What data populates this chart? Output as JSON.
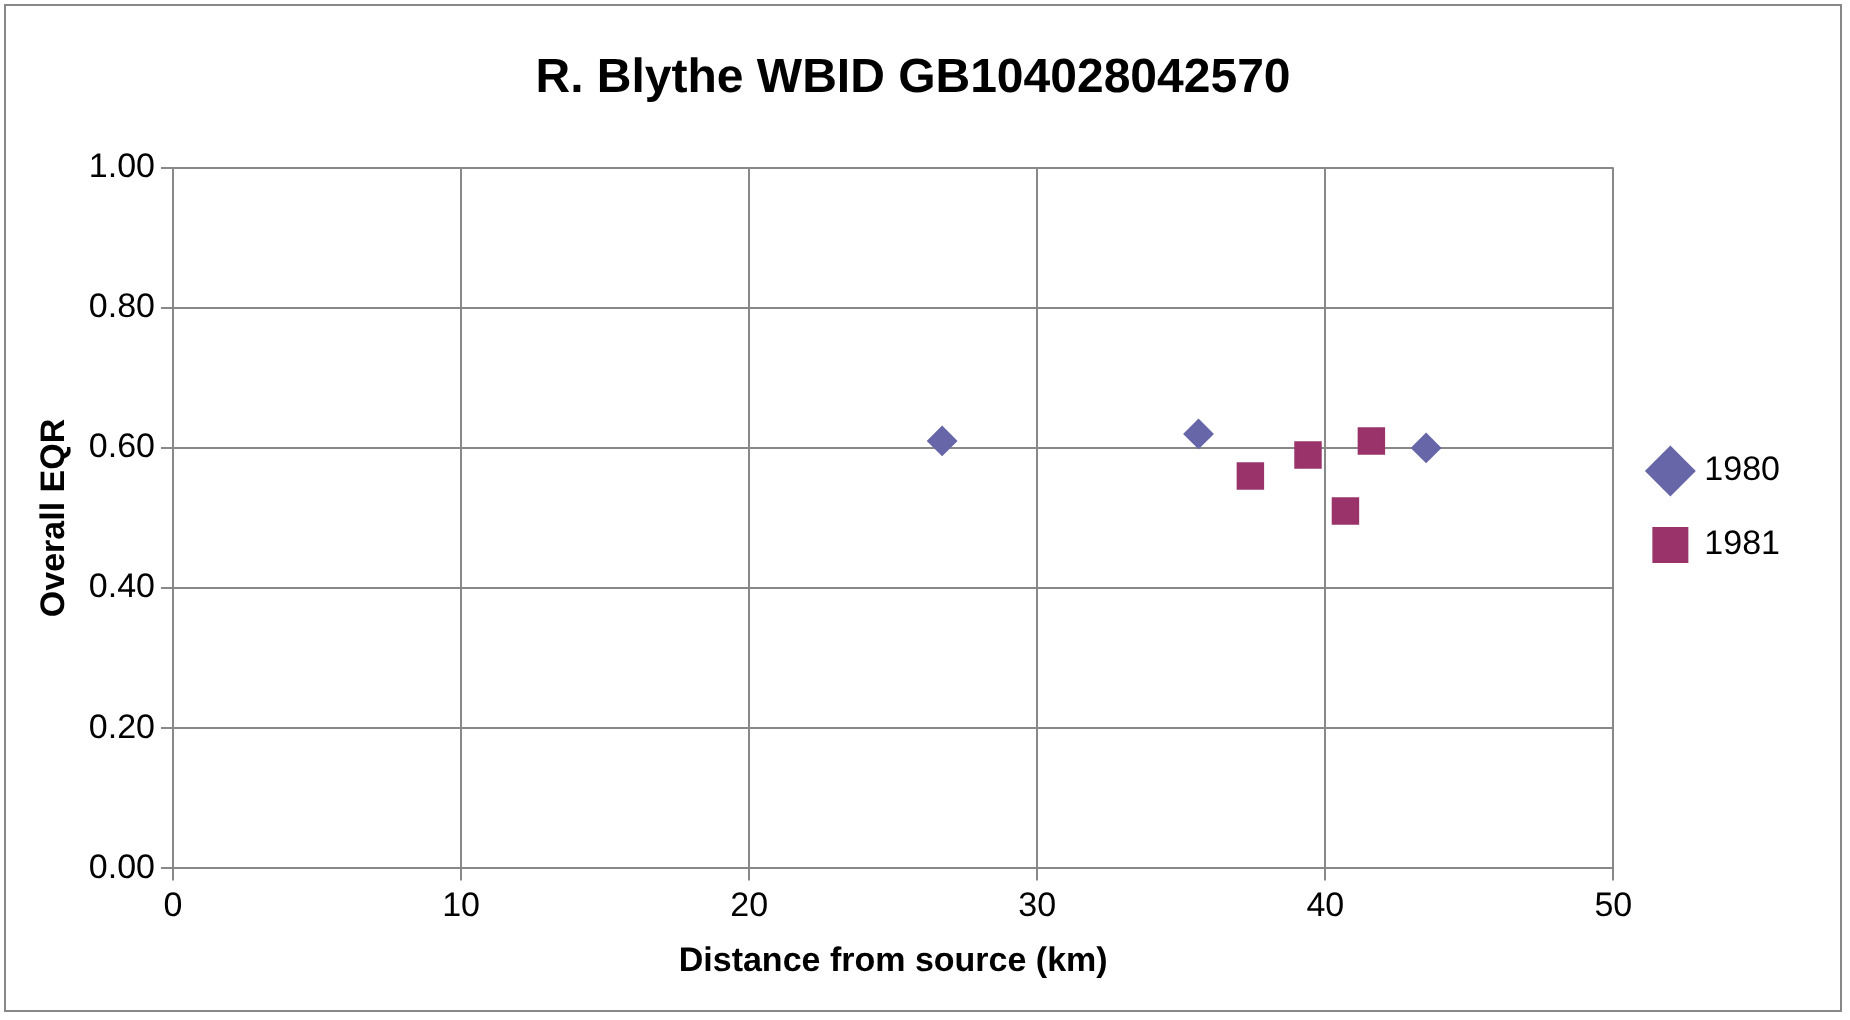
{
  "chart_data": {
    "type": "scatter",
    "title": "R. Blythe WBID GB104028042570",
    "xlabel": "Distance from source (km)",
    "ylabel": "Overall EQR",
    "xlim": [
      0,
      50
    ],
    "xticks": [
      0,
      10,
      20,
      30,
      40,
      50
    ],
    "ylim": [
      0,
      1
    ],
    "yticks": [
      {
        "value": 0,
        "label": "0.00"
      },
      {
        "value": 0.2,
        "label": "0.20"
      },
      {
        "value": 0.4,
        "label": "0.40"
      },
      {
        "value": 0.6,
        "label": "0.60"
      },
      {
        "value": 0.8,
        "label": "0.80"
      },
      {
        "value": 1,
        "label": "1.00"
      }
    ],
    "grid": true,
    "legend": "right",
    "series": [
      {
        "name": "1980",
        "color": "#6666a8",
        "marker": "diamond",
        "x": [
          26.7,
          35.6,
          43.5
        ],
        "values": [
          0.61,
          0.62,
          0.6
        ]
      },
      {
        "name": "1981",
        "color": "#99336a",
        "marker": "square",
        "x": [
          37.4,
          39.4,
          40.7,
          41.6
        ],
        "values": [
          0.56,
          0.59,
          0.51,
          0.61
        ]
      }
    ]
  }
}
